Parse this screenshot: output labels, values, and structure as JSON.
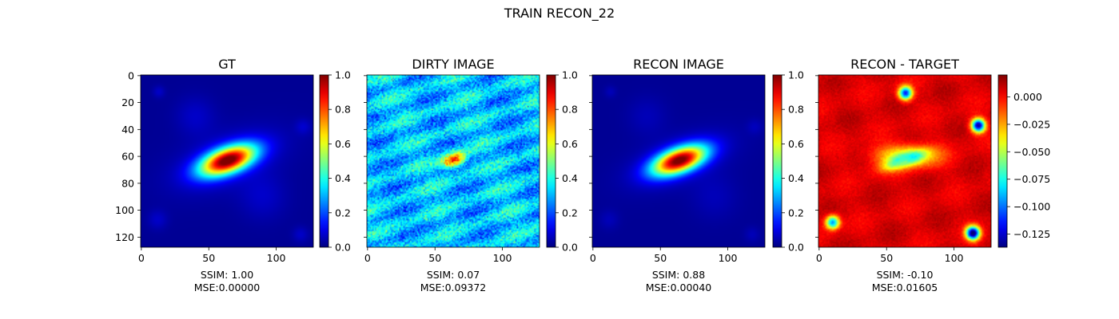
{
  "figure": {
    "title": "TRAIN RECON_22"
  },
  "chart_data": [
    {
      "type": "heatmap",
      "title": "GT",
      "field": "gt",
      "colormap": "jet",
      "vlim": [
        0.0,
        1.0
      ],
      "x_ticks": [
        0,
        50,
        100
      ],
      "y_ticks": [
        0,
        20,
        40,
        60,
        80,
        100,
        120
      ],
      "show_y_tick_labels": true,
      "colorbar_ticks": [
        "0.0",
        "0.2",
        "0.4",
        "0.6",
        "0.8",
        "1.0"
      ],
      "caption": [
        "SSIM: 1.00",
        "MSE:0.00000"
      ]
    },
    {
      "type": "heatmap",
      "title": "DIRTY IMAGE",
      "field": "dirty",
      "colormap": "jet",
      "vlim": [
        0.0,
        1.0
      ],
      "x_ticks": [
        0,
        50,
        100
      ],
      "y_ticks": [
        0,
        20,
        40,
        60,
        80,
        100,
        120
      ],
      "show_y_tick_labels": false,
      "colorbar_ticks": [
        "0.0",
        "0.2",
        "0.4",
        "0.6",
        "0.8",
        "1.0"
      ],
      "caption": [
        "SSIM: 0.07",
        "MSE:0.09372"
      ]
    },
    {
      "type": "heatmap",
      "title": "RECON IMAGE",
      "field": "recon",
      "colormap": "jet",
      "vlim": [
        0.0,
        1.0
      ],
      "x_ticks": [
        0,
        50,
        100
      ],
      "y_ticks": [
        0,
        20,
        40,
        60,
        80,
        100,
        120
      ],
      "show_y_tick_labels": false,
      "colorbar_ticks": [
        "0.0",
        "0.2",
        "0.4",
        "0.6",
        "0.8",
        "1.0"
      ],
      "caption": [
        "SSIM: 0.88",
        "MSE:0.00040"
      ]
    },
    {
      "type": "heatmap",
      "title": "RECON - TARGET",
      "field": "diff",
      "colormap": "jet",
      "vlim": [
        -0.137,
        0.02
      ],
      "x_ticks": [
        0,
        50,
        100
      ],
      "y_ticks": [
        0,
        20,
        40,
        60,
        80,
        100,
        120
      ],
      "show_y_tick_labels": false,
      "colorbar_ticks": [
        "0.000",
        "−0.025",
        "−0.050",
        "−0.075",
        "−0.100",
        "−0.125"
      ],
      "colorbar_tick_values": [
        0.0,
        -0.025,
        -0.05,
        -0.075,
        -0.1,
        -0.125
      ],
      "caption": [
        "SSIM: -0.10",
        "MSE:0.01605"
      ]
    }
  ]
}
